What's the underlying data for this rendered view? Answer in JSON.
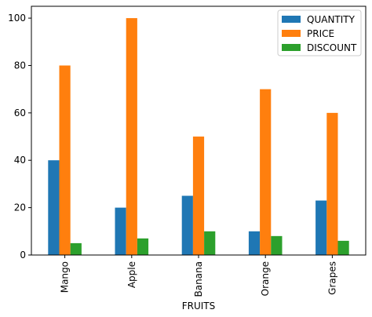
{
  "chart_data": {
    "type": "bar",
    "categories": [
      "Mango",
      "Apple",
      "Banana",
      "Orange",
      "Grapes"
    ],
    "series": [
      {
        "name": "QUANTITY",
        "color": "#1f77b4",
        "values": [
          40,
          20,
          25,
          10,
          23
        ]
      },
      {
        "name": "PRICE",
        "color": "#ff7f0e",
        "values": [
          80,
          100,
          50,
          70,
          60
        ]
      },
      {
        "name": "DISCOUNT",
        "color": "#2ca02c",
        "values": [
          5,
          7,
          10,
          8,
          6
        ]
      }
    ],
    "xlabel": "FRUITS",
    "ylabel": "",
    "ylim": [
      0,
      105
    ],
    "yticks": [
      0,
      20,
      40,
      60,
      80,
      100
    ],
    "grid": false,
    "legend_position": "top-right"
  }
}
